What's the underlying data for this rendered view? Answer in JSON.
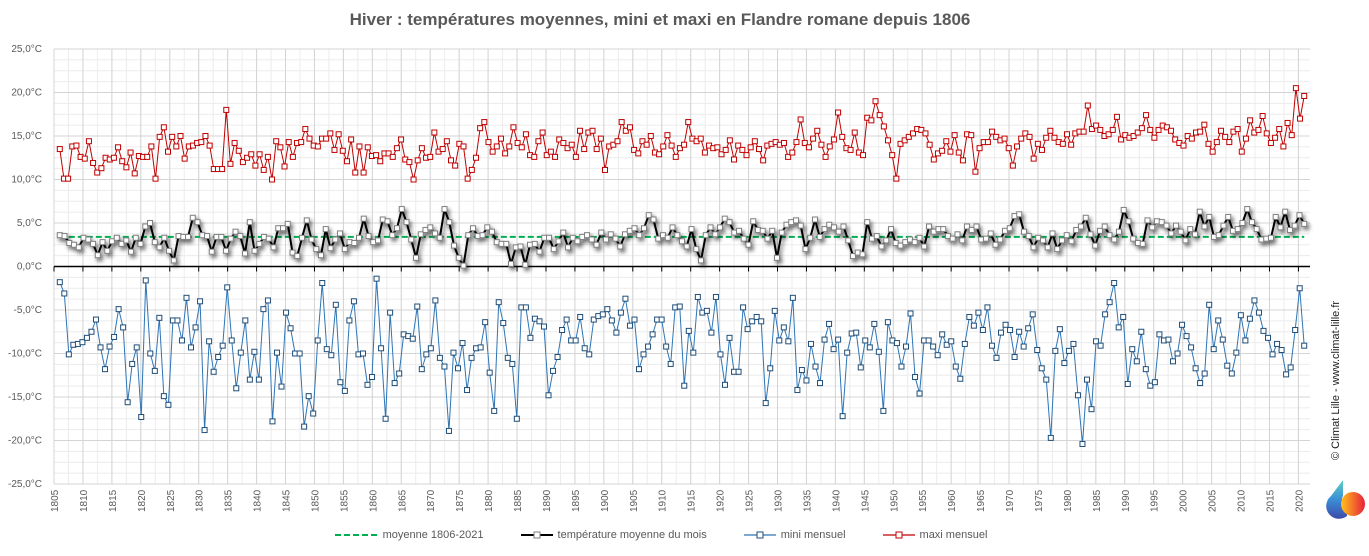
{
  "chart_data": {
    "type": "line",
    "title": "Hiver : températures moyennes, mini et maxi en Flandre romane depuis 1806",
    "xlabel": "",
    "ylabel": "",
    "ylim": [
      -25,
      25
    ],
    "y_ticks": [
      "25,0°C",
      "20,0°C",
      "15,0°C",
      "10,0°C",
      "5,0°C",
      "0,0°C",
      "-5,0°C",
      "-10,0°C",
      "-15,0°C",
      "-20,0°C",
      "-25,0°C"
    ],
    "y_tick_values": [
      25,
      20,
      15,
      10,
      5,
      0,
      -5,
      -10,
      -15,
      -20,
      -25
    ],
    "xlim": [
      1805,
      2022
    ],
    "x_ticks": [
      1805,
      1810,
      1815,
      1820,
      1825,
      1830,
      1835,
      1840,
      1845,
      1850,
      1855,
      1860,
      1865,
      1870,
      1875,
      1880,
      1885,
      1890,
      1895,
      1900,
      1905,
      1910,
      1915,
      1920,
      1925,
      1930,
      1935,
      1940,
      1945,
      1950,
      1955,
      1960,
      1965,
      1970,
      1975,
      1980,
      1985,
      1990,
      1995,
      2000,
      2005,
      2010,
      2015,
      2020
    ],
    "grid": true,
    "legend_position": "bottom",
    "x_start": 1806,
    "series": [
      {
        "name": "moyenne 1806-2021",
        "color": "#00b050",
        "style": "dashed",
        "values": [
          3.4
        ]
      },
      {
        "name": "température moyenne du mois",
        "color": "#000000",
        "marker_color": "#7f7f7f",
        "values": [
          3.6,
          3.5,
          2.7,
          2.5,
          2.2,
          3.3,
          3.1,
          2.6,
          1.3,
          2.8,
          1.8,
          2.9,
          3.3,
          2.6,
          3.0,
          1.7,
          3.3,
          2.6,
          4.6,
          5.0,
          2.8,
          2.2,
          3.3,
          1.8,
          0.7,
          3.5,
          3.4,
          3.4,
          5.6,
          5.1,
          3.6,
          3.5,
          1.7,
          3.4,
          3.4,
          1.8,
          3.2,
          4.0,
          3.5,
          1.5,
          5.1,
          1.8,
          2.6,
          3.4,
          3.2,
          2.2,
          4.4,
          4.4,
          4.9,
          1.6,
          1.2,
          3.3,
          5.3,
          3.1,
          2.0,
          1.3,
          4.3,
          2.1,
          3.1,
          3.8,
          2.0,
          2.8,
          2.7,
          3.3,
          5.5,
          3.5,
          2.8,
          3.0,
          5.4,
          5.2,
          3.6,
          4.4,
          6.6,
          5.1,
          3.1,
          1.0,
          3.7,
          4.2,
          4.5,
          3.8,
          3.3,
          6.6,
          5.1,
          2.4,
          1.0,
          0.1,
          3.6,
          4.4,
          3.5,
          3.6,
          4.5,
          4.0,
          2.8,
          2.6,
          2.6,
          0.3,
          2.2,
          2.3,
          0.2,
          2.5,
          2.6,
          1.7,
          3.3,
          3.3,
          2.0,
          2.9,
          3.9,
          2.2,
          3.3,
          2.9,
          3.4,
          3.6,
          3.1,
          2.5,
          3.9,
          3.1,
          3.7,
          3.2,
          2.3,
          3.7,
          4.1,
          4.4,
          3.6,
          4.4,
          5.9,
          5.4,
          3.2,
          3.6,
          3.3,
          4.5,
          3.6,
          2.9,
          2.3,
          4.3,
          2.0,
          0.7,
          3.6,
          4.5,
          3.7,
          4.5,
          5.5,
          5.1,
          3.9,
          4.1,
          3.2,
          2.5,
          5.2,
          4.2,
          4.1,
          3.2,
          4.1,
          1.0,
          3.9,
          4.8,
          5.1,
          5.3,
          4.7,
          2.0,
          3.3,
          5.4,
          3.4,
          4.3,
          4.8,
          4.5,
          4.0,
          4.6,
          3.0,
          1.2,
          1.6,
          1.4,
          5.1,
          3.2,
          3.5,
          2.3,
          3.0,
          4.3,
          2.7,
          2.4,
          2.8,
          3.1,
          2.8,
          3.3,
          2.3,
          4.6,
          4.0,
          4.3,
          4.3,
          3.5,
          3.2,
          3.7,
          3.0,
          4.6,
          4.2,
          4.6,
          3.1,
          3.2,
          3.8,
          2.5,
          3.1,
          4.1,
          4.4,
          5.8,
          6.0,
          4.0,
          3.5,
          2.2,
          3.3,
          3.0,
          2.2,
          3.8,
          2.0,
          3.0,
          3.6,
          2.9,
          4.2,
          4.6,
          5.6,
          3.7,
          2.4,
          4.1,
          4.6,
          3.6,
          3.1,
          4.0,
          6.5,
          5.2,
          3.2,
          2.7,
          2.6,
          5.3,
          4.5,
          5.2,
          5.1,
          4.7,
          3.8,
          4.7,
          4.0,
          3.0,
          4.3,
          3.7,
          6.3,
          4.6,
          5.7,
          3.4,
          3.6,
          4.7,
          5.7,
          4.1,
          4.3,
          5.0,
          6.6,
          5.1,
          4.3,
          3.1,
          3.2,
          3.3,
          5.7,
          4.5,
          6.3,
          4.2,
          4.7,
          5.9,
          4.9
        ],
        "note": "values sampled at approx. yearly resolution; see years_count"
      },
      {
        "name": "mini mensuel",
        "color": "#2e75b6",
        "marker_color": "#1f4e79",
        "values": [
          -1.8,
          -3.1,
          -10.1,
          -9.0,
          -8.9,
          -8.7,
          -8.2,
          -7.5,
          -6.1,
          -9.3,
          -11.8,
          -9.2,
          -8.1,
          -4.9,
          -7.0,
          -15.6,
          -11.2,
          -9.3,
          -17.3,
          -1.6,
          -10.0,
          -12.0,
          -5.9,
          -14.9,
          -15.9,
          -6.2,
          -6.2,
          -8.5,
          -3.6,
          -9.3,
          -7.0,
          -4.0,
          -18.8,
          -8.6,
          -12.1,
          -10.4,
          -9.1,
          -2.4,
          -8.5,
          -14.0,
          -9.9,
          -6.2,
          -13.0,
          -9.8,
          -13.0,
          -4.9,
          -3.9,
          -17.8,
          -9.9,
          -13.8,
          -5.3,
          -7.1,
          -10.0,
          -10.0,
          -18.4,
          -14.9,
          -16.9,
          -8.5,
          -1.9,
          -9.5,
          -10.2,
          -4.4,
          -13.3,
          -14.3,
          -6.2,
          -4.0,
          -10.1,
          -10.0,
          -13.6,
          -12.7,
          -1.4,
          -9.4,
          -17.5,
          -5.3,
          -13.4,
          -12.3,
          -7.8,
          -8.0,
          -8.3,
          -4.6,
          -11.8,
          -10.1,
          -9.4,
          -3.9,
          -10.5,
          -11.5,
          -18.9,
          -9.9,
          -11.7,
          -8.8,
          -14.2,
          -10.5,
          -9.4,
          -9.3,
          -6.4,
          -12.2,
          -16.6,
          -4.1,
          -6.5,
          -10.5,
          -11.2,
          -17.5,
          -4.7,
          -4.7,
          -8.2,
          -6.0,
          -6.3,
          -6.9,
          -14.8,
          -12.0,
          -10.4,
          -7.3,
          -6.1,
          -8.5,
          -8.5,
          -5.8,
          -9.4,
          -10.1,
          -6.1,
          -5.7,
          -5.5,
          -4.9,
          -6.2,
          -7.6,
          -5.3,
          -3.7,
          -6.8,
          -6.1,
          -11.8,
          -10.1,
          -9.2,
          -7.8,
          -6.1,
          -6.1,
          -9.2,
          -11.2,
          -4.7,
          -4.6,
          -13.7,
          -7.4,
          -9.9,
          -3.5,
          -5.3,
          -5.1,
          -7.6,
          -3.5,
          -10.1,
          -13.6,
          -8.2,
          -12.1,
          -12.1,
          -4.7,
          -7.2,
          -6.3,
          -5.8,
          -6.3,
          -15.7,
          -11.7,
          -5.1,
          -8.5,
          -7.0,
          -8.6,
          -3.6,
          -14.2,
          -11.9,
          -13.1,
          -8.9,
          -11.5,
          -13.4,
          -8.4,
          -6.6,
          -9.5,
          -8.4,
          -17.2,
          -9.9,
          -7.7,
          -7.6,
          -11.6,
          -8.5,
          -9.3,
          -6.6,
          -9.8,
          -16.6,
          -6.4,
          -8.5,
          -8.8,
          -11.5,
          -9.2,
          -5.4,
          -12.7,
          -14.6,
          -8.5,
          -8.5,
          -9.2,
          -10.2,
          -7.8,
          -9.0,
          -8.6,
          -11.5,
          -12.9,
          -8.9,
          -5.8,
          -6.8,
          -5.3,
          -7.3,
          -4.7,
          -9.1,
          -10.5,
          -7.6,
          -6.7,
          -7.3,
          -10.4,
          -7.5,
          -9.2,
          -7.1,
          -5.5,
          -9.6,
          -11.7,
          -13.0,
          -19.7,
          -9.7,
          -7.2,
          -11.1,
          -9.7,
          -8.9,
          -14.8,
          -20.4,
          -13.0,
          -16.4,
          -8.6,
          -9.1,
          -5.5,
          -4.1,
          -1.9,
          -7.0,
          -5.8,
          -13.5,
          -9.5,
          -10.9,
          -7.5,
          -11.8,
          -13.7,
          -13.3,
          -7.8,
          -8.5,
          -8.4,
          -10.9,
          -10.0,
          -6.7,
          -8.0,
          -9.3,
          -11.7,
          -13.4,
          -12.3,
          -4.4,
          -9.5,
          -6.2,
          -8.4,
          -11.4,
          -12.3,
          -9.9,
          -5.6,
          -8.5,
          -6.0,
          -3.9,
          -5.3,
          -7.4,
          -8.2,
          -10.1,
          -8.9,
          -9.6,
          -12.4,
          -11.6,
          -7.3,
          -2.5,
          -9.1
        ]
      },
      {
        "name": "maxi mensuel",
        "color": "#c00000",
        "marker_color": "#c00000",
        "values": [
          13.5,
          10.1,
          10.1,
          13.8,
          13.9,
          12.6,
          12.4,
          14.4,
          11.9,
          10.8,
          11.3,
          12.5,
          12.3,
          12.5,
          13.7,
          12.1,
          11.4,
          13.1,
          10.7,
          12.7,
          12.6,
          12.6,
          13.8,
          10.1,
          14.9,
          16.0,
          13.2,
          14.9,
          13.8,
          15.0,
          12.4,
          13.8,
          13.9,
          14.2,
          14.3,
          15.0,
          13.9,
          11.2,
          11.2,
          11.2,
          18.0,
          11.8,
          14.2,
          13.3,
          12.0,
          12.5,
          12.9,
          11.6,
          12.9,
          11.1,
          12.6,
          10.0,
          14.4,
          13.7,
          11.5,
          14.3,
          12.6,
          14.2,
          14.3,
          15.8,
          14.7,
          13.9,
          13.8,
          14.7,
          14.7,
          15.3,
          13.4,
          15.2,
          13.3,
          12.1,
          14.6,
          10.8,
          13.8,
          10.8,
          13.7,
          12.7,
          12.8,
          12.1,
          13.0,
          13.0,
          12.6,
          13.6,
          14.6,
          12.3,
          12.0,
          10.0,
          12.2,
          13.6,
          12.5,
          12.6,
          15.4,
          13.2,
          13.5,
          14.4,
          12.2,
          11.6,
          14.1,
          13.8,
          10.1,
          11.1,
          12.5,
          15.9,
          16.6,
          14.3,
          13.2,
          13.8,
          14.7,
          13.0,
          13.8,
          16.0,
          14.2,
          13.7,
          15.2,
          12.8,
          12.6,
          14.4,
          15.4,
          12.8,
          13.2,
          12.6,
          14.6,
          14.2,
          13.6,
          14.0,
          12.6,
          15.6,
          13.5,
          15.4,
          15.6,
          13.5,
          14.7,
          11.1,
          13.8,
          14.0,
          14.4,
          16.6,
          15.6,
          16.0,
          13.4,
          13.0,
          14.4,
          14.0,
          15.0,
          13.1,
          12.9,
          13.8,
          15.1,
          13.9,
          12.6,
          13.6,
          14.0,
          16.6,
          14.7,
          14.4,
          14.7,
          13.1,
          13.9,
          13.6,
          13.7,
          12.9,
          13.4,
          14.5,
          12.3,
          13.9,
          13.4,
          12.8,
          13.7,
          14.4,
          13.5,
          12.2,
          13.9,
          14.1,
          14.3,
          14.0,
          14.2,
          12.6,
          13.1,
          14.3,
          16.9,
          14.2,
          13.7,
          14.7,
          15.6,
          14.0,
          12.6,
          13.8,
          14.6,
          17.7,
          14.9,
          13.6,
          13.4,
          15.4,
          13.1,
          12.8,
          17.1,
          16.8,
          19.0,
          17.4,
          16.1,
          14.5,
          12.8,
          10.1,
          14.1,
          14.5,
          14.9,
          15.3,
          15.8,
          15.7,
          15.3,
          14.0,
          12.3,
          13.0,
          13.3,
          14.4,
          13.2,
          15.1,
          13.1,
          12.2,
          15.2,
          15.1,
          10.9,
          13.6,
          14.3,
          14.3,
          15.5,
          14.9,
          14.5,
          14.7,
          13.6,
          11.6,
          13.8,
          14.7,
          15.3,
          14.9,
          12.4,
          14.1,
          13.4,
          14.8,
          15.6,
          14.8,
          14.3,
          14.1,
          15.2,
          14.0,
          15.3,
          15.5,
          15.5,
          18.5,
          15.8,
          16.2,
          15.7,
          15.0,
          15.2,
          15.7,
          17.2,
          14.6,
          15.1,
          14.8,
          15.0,
          15.4,
          15.9,
          17.4,
          15.7,
          14.8,
          15.7,
          16.2,
          16.0,
          15.6,
          14.6,
          14.2,
          13.9,
          15.0,
          14.7,
          15.4,
          15.5,
          16.3,
          14.1,
          13.2,
          14.3,
          15.6,
          14.9,
          14.3,
          15.5,
          15.8,
          13.2,
          14.7,
          16.8,
          15.4,
          15.7,
          17.3,
          15.3,
          14.2,
          14.8,
          15.8,
          13.8,
          16.5,
          15.1,
          20.5,
          17.0,
          19.6
        ]
      }
    ]
  },
  "legend": {
    "items": [
      "moyenne 1806-2021",
      "température moyenne du mois",
      "mini mensuel",
      "maxi mensuel"
    ]
  },
  "watermark": "© Climat Lille - www.climat-lille.fr"
}
